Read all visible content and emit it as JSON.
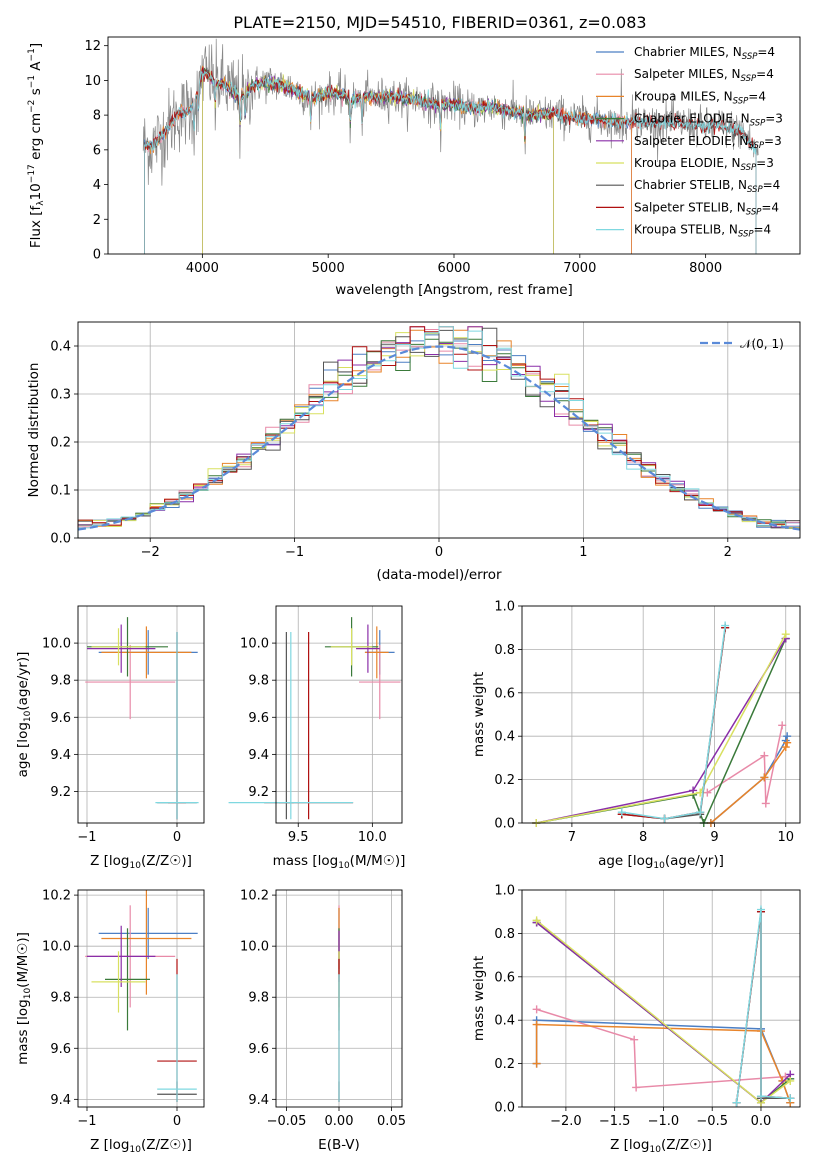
{
  "colors": {
    "chabrier_miles": "#4c7fc4",
    "salpeter_miles": "#e88aa8",
    "kroupa_miles": "#e8842a",
    "chabrier_elodie": "#3a7a3a",
    "salpeter_elodie": "#8a2ea8",
    "kroupa_elodie": "#d8e060",
    "chabrier_stelib": "#555555",
    "salpeter_stelib": "#b01010",
    "kroupa_stelib": "#7fd8e0",
    "normal_curve": "#5a8ad8"
  },
  "chart_data": [
    {
      "id": "spectrum",
      "type": "line",
      "title": "PLATE=2150, MJD=54510, FIBERID=0361, z=0.083",
      "xlabel": "wavelength [Angstrom, rest frame]",
      "ylabel": "Flux [f_λ 10^-17 erg cm^-2 s^-1 A^-1]",
      "xlim": [
        3250,
        8750
      ],
      "ylim": [
        0,
        12.5
      ],
      "xticks": [
        "4000",
        "5000",
        "6000",
        "7000",
        "8000"
      ],
      "yticks": [
        "0",
        "2",
        "4",
        "6",
        "8",
        "10",
        "12"
      ],
      "grid": false,
      "legend_placement": "top-right",
      "legend": [
        {
          "label": "Chabrier MILES, N",
          "sub": "SSP",
          "suffix": "=4"
        },
        {
          "label": "Salpeter MILES, N",
          "sub": "SSP",
          "suffix": "=4"
        },
        {
          "label": "Kroupa MILES, N",
          "sub": "SSP",
          "suffix": "=4"
        },
        {
          "label": "Chabrier ELODIE, N",
          "sub": "SSP",
          "suffix": "=3"
        },
        {
          "label": "Salpeter ELODIE, N",
          "sub": "SSP",
          "suffix": "=3"
        },
        {
          "label": "Kroupa ELODIE, N",
          "sub": "SSP",
          "suffix": "=3"
        },
        {
          "label": "Chabrier STELIB, N",
          "sub": "SSP",
          "suffix": "=4"
        },
        {
          "label": "Salpeter STELIB, N",
          "sub": "SSP",
          "suffix": "=4"
        },
        {
          "label": "Kroupa STELIB, N",
          "sub": "SSP",
          "suffix": "=4"
        }
      ],
      "continuum": [
        [
          3530,
          6.3
        ],
        [
          3600,
          6.2
        ],
        [
          3700,
          7.0
        ],
        [
          3800,
          8.0
        ],
        [
          3900,
          8.3
        ],
        [
          3950,
          9.0
        ],
        [
          4000,
          10.5
        ],
        [
          4100,
          10.0
        ],
        [
          4200,
          9.6
        ],
        [
          4300,
          9.0
        ],
        [
          4400,
          9.7
        ],
        [
          4500,
          9.9
        ],
        [
          4600,
          9.8
        ],
        [
          4700,
          9.6
        ],
        [
          4800,
          9.2
        ],
        [
          4900,
          9.0
        ],
        [
          5000,
          9.3
        ],
        [
          5100,
          9.2
        ],
        [
          5200,
          8.9
        ],
        [
          5300,
          9.1
        ],
        [
          5400,
          9.0
        ],
        [
          5500,
          9.1
        ],
        [
          5600,
          8.9
        ],
        [
          5700,
          8.9
        ],
        [
          5800,
          8.7
        ],
        [
          5900,
          8.6
        ],
        [
          6000,
          8.7
        ],
        [
          6100,
          8.4
        ],
        [
          6200,
          8.4
        ],
        [
          6300,
          8.5
        ],
        [
          6400,
          8.3
        ],
        [
          6500,
          8.2
        ],
        [
          6600,
          8.0
        ],
        [
          6700,
          8.0
        ],
        [
          6800,
          8.1
        ],
        [
          6900,
          7.9
        ],
        [
          7000,
          7.8
        ],
        [
          7100,
          7.8
        ],
        [
          7200,
          7.7
        ],
        [
          7300,
          7.6
        ],
        [
          7400,
          7.6
        ],
        [
          7500,
          7.6
        ],
        [
          7600,
          7.5
        ],
        [
          7700,
          7.6
        ],
        [
          7800,
          7.5
        ],
        [
          7900,
          7.4
        ],
        [
          8000,
          7.3
        ],
        [
          8100,
          7.4
        ],
        [
          8200,
          7.2
        ],
        [
          8300,
          7.0
        ],
        [
          8400,
          6.0
        ]
      ]
    },
    {
      "id": "residuals",
      "type": "step",
      "xlabel": "(data-model)/error",
      "ylabel": "Normed distribution",
      "xlim": [
        -2.5,
        2.5
      ],
      "ylim": [
        0,
        0.45
      ],
      "xticks": [
        "−2",
        "−1",
        "0",
        "1",
        "2"
      ],
      "yticks": [
        "0.0",
        "0.1",
        "0.2",
        "0.3",
        "0.4"
      ],
      "grid": true,
      "legend_placement": "top-right",
      "legend_curve": "𝒩(0, 1)",
      "bins": 50
    },
    {
      "id": "age_vs_Z",
      "type": "errorbar",
      "xlabel": "Z [log10(Z/Z☉)]",
      "ylabel": "age [log10(age/yr)]",
      "xlim": [
        -1.1,
        0.3
      ],
      "ylim": [
        9.03,
        10.2
      ],
      "xticks": [
        "−1",
        "0"
      ],
      "yticks": [
        "9.2",
        "9.4",
        "9.6",
        "9.8",
        "10.0"
      ],
      "grid": true,
      "points": [
        {
          "c": "chabrier_miles",
          "x": -0.32,
          "y": 9.95,
          "ex": 0.55,
          "ey": 0.12
        },
        {
          "c": "salpeter_miles",
          "x": -0.52,
          "y": 9.79,
          "ex": 0.5,
          "ey": 0.2
        },
        {
          "c": "kroupa_miles",
          "x": -0.34,
          "y": 9.95,
          "ex": 0.5,
          "ey": 0.14
        },
        {
          "c": "chabrier_elodie",
          "x": -0.55,
          "y": 9.98,
          "ex": 0.45,
          "ey": 0.16
        },
        {
          "c": "salpeter_elodie",
          "x": -0.62,
          "y": 9.97,
          "ex": 0.38,
          "ey": 0.13
        },
        {
          "c": "kroupa_elodie",
          "x": -0.65,
          "y": 9.98,
          "ex": 0.3,
          "ey": 0.1
        },
        {
          "c": "chabrier_stelib",
          "x": 0.0,
          "y": 9.14,
          "ex": 0.22,
          "ey": 0.92
        },
        {
          "c": "salpeter_stelib",
          "x": 0.0,
          "y": 9.14,
          "ex": 0.1,
          "ey": 0.92
        },
        {
          "c": "kroupa_stelib",
          "x": 0.0,
          "y": 9.14,
          "ex": 0.24,
          "ey": 0.92
        }
      ]
    },
    {
      "id": "age_vs_mass",
      "type": "errorbar",
      "xlabel": "mass [log10(M/M☉)]",
      "ylabel": "",
      "xlim": [
        9.35,
        10.2
      ],
      "ylim": [
        9.03,
        10.2
      ],
      "xticks": [
        "9.5",
        "10.0"
      ],
      "yticks": [
        "9.2",
        "9.4",
        "9.6",
        "9.8",
        "10.0"
      ],
      "grid": true,
      "points": [
        {
          "c": "chabrier_miles",
          "x": 10.05,
          "y": 9.95,
          "ex": 0.1,
          "ey": 0.12
        },
        {
          "c": "salpeter_miles",
          "x": 10.05,
          "y": 9.79,
          "ex": 0.14,
          "ey": 0.2
        },
        {
          "c": "kroupa_miles",
          "x": 10.03,
          "y": 9.95,
          "ex": 0.08,
          "ey": 0.14
        },
        {
          "c": "chabrier_elodie",
          "x": 9.86,
          "y": 9.98,
          "ex": 0.18,
          "ey": 0.16
        },
        {
          "c": "salpeter_elodie",
          "x": 9.97,
          "y": 9.97,
          "ex": 0.08,
          "ey": 0.13
        },
        {
          "c": "kroupa_elodie",
          "x": 9.86,
          "y": 9.98,
          "ex": 0.14,
          "ey": 0.1
        },
        {
          "c": "chabrier_stelib",
          "x": 9.42,
          "y": 9.14,
          "ex": 0.05,
          "ey": 0.92
        },
        {
          "c": "salpeter_stelib",
          "x": 9.57,
          "y": 9.14,
          "ex": 0.3,
          "ey": 0.92
        },
        {
          "c": "kroupa_stelib",
          "x": 9.45,
          "y": 9.14,
          "ex": 0.42,
          "ey": 0.92
        }
      ]
    },
    {
      "id": "weight_vs_age",
      "type": "line",
      "xlabel": "age [log10(age/yr)]",
      "ylabel": "mass weight",
      "xlim": [
        6.3,
        10.2
      ],
      "ylim": [
        0,
        1.0
      ],
      "xticks": [
        "7",
        "8",
        "9",
        "10"
      ],
      "yticks": [
        "0.0",
        "0.2",
        "0.4",
        "0.6",
        "0.8",
        "1.0"
      ],
      "grid": true,
      "series": [
        {
          "c": "chabrier_miles",
          "x": [
            8.95,
            9.7,
            10.0,
            10.02
          ],
          "y": [
            0.0,
            0.21,
            0.38,
            0.4
          ]
        },
        {
          "c": "salpeter_miles",
          "x": [
            8.9,
            9.7,
            9.72,
            9.95
          ],
          "y": [
            0.14,
            0.31,
            0.09,
            0.45
          ]
        },
        {
          "c": "kroupa_miles",
          "x": [
            8.95,
            9.7,
            10.0,
            10.02
          ],
          "y": [
            0.0,
            0.21,
            0.35,
            0.37
          ]
        },
        {
          "c": "chabrier_elodie",
          "x": [
            6.5,
            8.7,
            8.85,
            10.0
          ],
          "y": [
            0.0,
            0.13,
            0.0,
            0.85
          ]
        },
        {
          "c": "salpeter_elodie",
          "x": [
            6.5,
            8.7,
            10.0
          ],
          "y": [
            0.0,
            0.15,
            0.85
          ]
        },
        {
          "c": "kroupa_elodie",
          "x": [
            6.5,
            8.8,
            10.0
          ],
          "y": [
            0.0,
            0.14,
            0.87
          ]
        },
        {
          "c": "chabrier_stelib",
          "x": [
            7.7,
            8.3,
            8.8,
            9.15
          ],
          "y": [
            0.04,
            0.02,
            0.04,
            0.9
          ]
        },
        {
          "c": "salpeter_stelib",
          "x": [
            7.7,
            8.3,
            8.8,
            9.15
          ],
          "y": [
            0.04,
            0.02,
            0.05,
            0.9
          ]
        },
        {
          "c": "kroupa_stelib",
          "x": [
            7.7,
            8.3,
            8.8,
            9.15
          ],
          "y": [
            0.05,
            0.02,
            0.05,
            0.91
          ]
        }
      ]
    },
    {
      "id": "mass_vs_Z",
      "type": "errorbar",
      "xlabel": "Z [log10(Z/Z☉)]",
      "ylabel": "mass [log10(M/M☉)]",
      "xlim": [
        -1.1,
        0.3
      ],
      "ylim": [
        9.37,
        10.22
      ],
      "xticks": [
        "−1",
        "0"
      ],
      "yticks": [
        "9.4",
        "9.6",
        "9.8",
        "10.0",
        "10.2"
      ],
      "grid": true,
      "points": [
        {
          "c": "chabrier_miles",
          "x": -0.32,
          "y": 10.05,
          "ex": 0.55,
          "ey": 0.1
        },
        {
          "c": "salpeter_miles",
          "x": -0.52,
          "y": 9.96,
          "ex": 0.5,
          "ey": 0.2
        },
        {
          "c": "kroupa_miles",
          "x": -0.34,
          "y": 10.03,
          "ex": 0.5,
          "ey": 0.22
        },
        {
          "c": "chabrier_elodie",
          "x": -0.55,
          "y": 9.87,
          "ex": 0.25,
          "ey": 0.2
        },
        {
          "c": "salpeter_elodie",
          "x": -0.62,
          "y": 9.96,
          "ex": 0.38,
          "ey": 0.12
        },
        {
          "c": "kroupa_elodie",
          "x": -0.65,
          "y": 9.86,
          "ex": 0.3,
          "ey": 0.12
        },
        {
          "c": "chabrier_stelib",
          "x": 0.0,
          "y": 9.42,
          "ex": 0.22,
          "ey": 0.05
        },
        {
          "c": "salpeter_stelib",
          "x": 0.0,
          "y": 9.55,
          "ex": 0.22,
          "ey": 0.4
        },
        {
          "c": "kroupa_stelib",
          "x": 0.0,
          "y": 9.44,
          "ex": 0.22,
          "ey": 0.45
        }
      ]
    },
    {
      "id": "mass_vs_ebv",
      "type": "errorbar",
      "xlabel": "E(B-V)",
      "ylabel": "",
      "xlim": [
        -0.06,
        0.06
      ],
      "ylim": [
        9.37,
        10.22
      ],
      "xticks": [
        "−0.05",
        "0.00",
        "0.05"
      ],
      "yticks": [
        "9.4",
        "9.6",
        "9.8",
        "10.0",
        "10.2"
      ],
      "grid": true,
      "points": [
        {
          "c": "chabrier_miles",
          "x": 0.0,
          "y": 10.05,
          "ex": 0,
          "ey": 0.1
        },
        {
          "c": "salpeter_miles",
          "x": 0.0,
          "y": 9.96,
          "ex": 0,
          "ey": 0.2
        },
        {
          "c": "kroupa_miles",
          "x": 0.0,
          "y": 10.03,
          "ex": 0,
          "ey": 0.12
        },
        {
          "c": "chabrier_elodie",
          "x": 0.0,
          "y": 9.87,
          "ex": 0,
          "ey": 0.2
        },
        {
          "c": "salpeter_elodie",
          "x": 0.0,
          "y": 9.96,
          "ex": 0,
          "ey": 0.1
        },
        {
          "c": "kroupa_elodie",
          "x": 0.0,
          "y": 9.86,
          "ex": 0,
          "ey": 0.12
        },
        {
          "c": "chabrier_stelib",
          "x": 0.0,
          "y": 9.42,
          "ex": 0,
          "ey": 0.05
        },
        {
          "c": "salpeter_stelib",
          "x": 0.0,
          "y": 9.55,
          "ex": 0,
          "ey": 0.4
        },
        {
          "c": "kroupa_stelib",
          "x": 0.0,
          "y": 9.44,
          "ex": 0,
          "ey": 0.45
        }
      ]
    },
    {
      "id": "weight_vs_Z",
      "type": "line",
      "xlabel": "Z [log10(Z/Z☉)]",
      "ylabel": "mass weight",
      "xlim": [
        -2.45,
        0.4
      ],
      "ylim": [
        0,
        1.0
      ],
      "xticks": [
        "−2.0",
        "−1.5",
        "−1.0",
        "−0.5",
        "0.0"
      ],
      "yticks": [
        "0.0",
        "0.2",
        "0.4",
        "0.6",
        "0.8",
        "1.0"
      ],
      "grid": true,
      "series": [
        {
          "c": "chabrier_miles",
          "x": [
            -2.3,
            -2.3,
            0.0,
            0.22,
            0.3
          ],
          "y": [
            0.2,
            0.4,
            0.36,
            0.12,
            0.02
          ]
        },
        {
          "c": "salpeter_miles",
          "x": [
            -2.3,
            -1.3,
            -1.28,
            0.25
          ],
          "y": [
            0.45,
            0.31,
            0.09,
            0.14
          ]
        },
        {
          "c": "kroupa_miles",
          "x": [
            -2.3,
            -2.3,
            0.0,
            0.22,
            0.3
          ],
          "y": [
            0.2,
            0.38,
            0.35,
            0.12,
            0.02
          ]
        },
        {
          "c": "chabrier_elodie",
          "x": [
            -2.3,
            0.0,
            0.3
          ],
          "y": [
            0.85,
            0.02,
            0.13
          ]
        },
        {
          "c": "salpeter_elodie",
          "x": [
            -2.3,
            0.0,
            0.3
          ],
          "y": [
            0.85,
            0.02,
            0.15
          ]
        },
        {
          "c": "kroupa_elodie",
          "x": [
            -2.3,
            0.0,
            0.3
          ],
          "y": [
            0.86,
            0.02,
            0.12
          ]
        },
        {
          "c": "chabrier_stelib",
          "x": [
            -0.25,
            0.0,
            0.0,
            0.3
          ],
          "y": [
            0.02,
            0.9,
            0.04,
            0.04
          ]
        },
        {
          "c": "salpeter_stelib",
          "x": [
            -0.25,
            0.0,
            0.0,
            0.3
          ],
          "y": [
            0.02,
            0.9,
            0.05,
            0.04
          ]
        },
        {
          "c": "kroupa_stelib",
          "x": [
            -0.25,
            0.0,
            0.0,
            0.3
          ],
          "y": [
            0.02,
            0.91,
            0.05,
            0.04
          ]
        }
      ]
    }
  ]
}
